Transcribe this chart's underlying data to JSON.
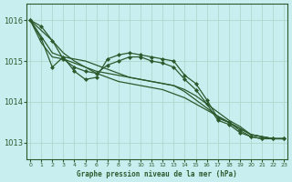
{
  "title": "Graphe pression niveau de la mer (hPa)",
  "xlabel": "Graphe pression niveau de la mer (hPa)",
  "background_color": "#c8eef0",
  "grid_color": "#b0d8cc",
  "line_color": "#2d5a2d",
  "x_hours": [
    0,
    1,
    2,
    3,
    4,
    5,
    6,
    7,
    8,
    9,
    10,
    11,
    12,
    13,
    14,
    15,
    16,
    17,
    18,
    19,
    20,
    21,
    22,
    23
  ],
  "ylim": [
    1012.6,
    1016.4
  ],
  "yticks": [
    1013,
    1014,
    1015,
    1016
  ],
  "series": [
    {
      "y": [
        1016.0,
        1015.75,
        1015.5,
        1015.2,
        1015.0,
        1014.85,
        1014.7,
        1014.6,
        1014.5,
        1014.45,
        1014.4,
        1014.35,
        1014.3,
        1014.2,
        1014.1,
        1013.95,
        1013.8,
        1013.65,
        1013.5,
        1013.35,
        1013.2,
        1013.15,
        1013.1,
        1013.1
      ],
      "marker": null,
      "lw": 0.9
    },
    {
      "y": [
        1016.0,
        1015.6,
        1015.2,
        1015.1,
        1015.05,
        1015.0,
        1014.9,
        1014.8,
        1014.7,
        1014.6,
        1014.55,
        1014.5,
        1014.45,
        1014.4,
        1014.3,
        1014.15,
        1013.95,
        1013.75,
        1013.55,
        1013.4,
        1013.2,
        1013.15,
        1013.1,
        1013.1
      ],
      "marker": null,
      "lw": 0.9
    },
    {
      "y": [
        1016.0,
        1015.45,
        1015.1,
        1015.05,
        1014.95,
        1014.85,
        1014.75,
        1014.7,
        1014.65,
        1014.6,
        1014.55,
        1014.5,
        1014.45,
        1014.4,
        1014.25,
        1014.05,
        1013.85,
        1013.65,
        1013.5,
        1013.35,
        1013.2,
        1013.15,
        1013.1,
        1013.1
      ],
      "marker": null,
      "lw": 0.9
    },
    {
      "y": [
        1016.0,
        1015.55,
        1014.85,
        1015.1,
        1014.75,
        1014.55,
        1014.6,
        1015.05,
        1015.15,
        1015.2,
        1015.15,
        1015.1,
        1015.05,
        1015.0,
        1014.65,
        1014.45,
        1014.05,
        1013.6,
        1013.5,
        1013.3,
        1013.15,
        1013.1,
        1013.1,
        1013.1
      ],
      "marker": "D",
      "lw": 0.9
    },
    {
      "y": [
        1016.0,
        1015.85,
        1015.5,
        1015.05,
        1014.85,
        1014.75,
        1014.7,
        1014.9,
        1015.0,
        1015.1,
        1015.1,
        1015.0,
        1014.95,
        1014.85,
        1014.55,
        1014.3,
        1013.95,
        1013.55,
        1013.45,
        1013.25,
        1013.15,
        1013.1,
        1013.1,
        1013.1
      ],
      "marker": "D",
      "lw": 0.9
    }
  ]
}
